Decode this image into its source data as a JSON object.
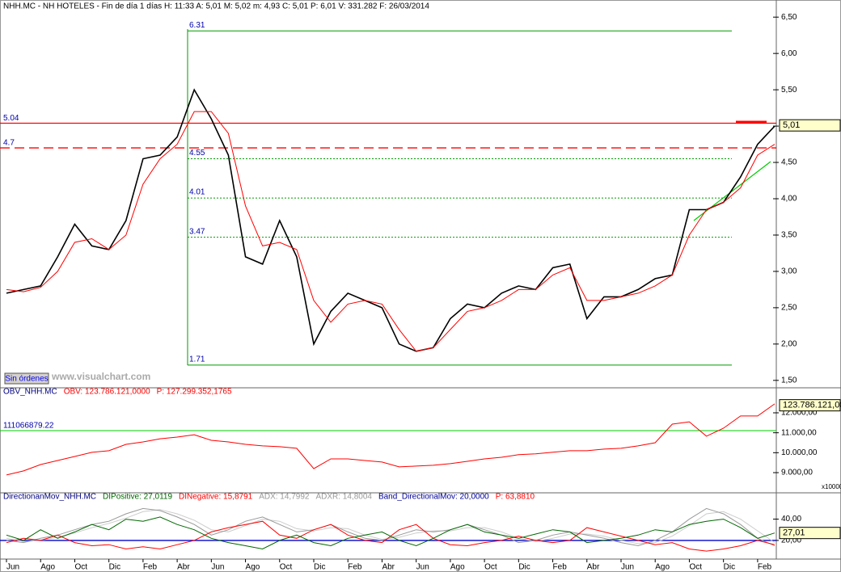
{
  "chart_data": [
    {
      "type": "line",
      "title": "NHH.MC - NH HOTELES - Fin de día 1 días H: 11:33 A: 5,01 M: 5,02 m: 4,93 C: 5,01 P: 6,01 V: 331.282 F: 26/03/2014",
      "ylim": [
        1.42,
        6.58
      ],
      "yticks": [
        {
          "value": 1.5,
          "label": "1,50"
        },
        {
          "value": 2,
          "label": "2,00"
        },
        {
          "value": 2.5,
          "label": "2,50"
        },
        {
          "value": 3,
          "label": "3,00"
        },
        {
          "value": 3.5,
          "label": "3,50"
        },
        {
          "value": 4,
          "label": "4,00"
        },
        {
          "value": 4.5,
          "label": "4,50"
        },
        {
          "value": 5,
          "label": "5,00"
        },
        {
          "value": 5.5,
          "label": "5,50"
        },
        {
          "value": 6,
          "label": "6,00"
        },
        {
          "value": 6.5,
          "label": "6,50"
        }
      ],
      "series": [
        {
          "color": "#000000",
          "values": [
            2.7,
            2.75,
            2.8,
            3.2,
            3.65,
            3.35,
            3.3,
            3.7,
            4.55,
            4.6,
            4.85,
            5.5,
            5.1,
            4.6,
            3.2,
            3.1,
            3.7,
            3.2,
            2.0,
            2.45,
            2.7,
            2.6,
            2.5,
            2.0,
            1.9,
            1.95,
            2.35,
            2.55,
            2.5,
            2.7,
            2.8,
            2.75,
            3.05,
            3.1,
            2.35,
            2.65,
            2.65,
            2.75,
            2.9,
            2.95,
            3.85,
            3.85,
            3.95,
            4.3,
            4.75,
            5.0
          ]
        },
        {
          "color": "#ff0000",
          "values": [
            2.75,
            2.72,
            2.78,
            3.0,
            3.4,
            3.45,
            3.3,
            3.5,
            4.2,
            4.55,
            4.75,
            5.2,
            5.2,
            4.9,
            3.9,
            3.35,
            3.4,
            3.3,
            2.6,
            2.3,
            2.55,
            2.6,
            2.55,
            2.2,
            1.9,
            1.95,
            2.2,
            2.45,
            2.5,
            2.6,
            2.75,
            2.75,
            2.95,
            3.05,
            2.6,
            2.6,
            2.65,
            2.7,
            2.8,
            2.95,
            3.5,
            3.85,
            3.95,
            4.15,
            4.6,
            4.75
          ]
        }
      ],
      "levels": [
        6.31,
        4.55,
        4.01,
        3.47,
        1.71
      ],
      "levels_color": "#009900",
      "resistance": [
        5.04,
        4.7
      ],
      "resistance_color": "#ff0000",
      "last_tag": {
        "value": 5.01,
        "label": "5,01"
      }
    },
    {
      "type": "line",
      "title": "OBV_NHH.MC",
      "readout": [
        {
          "text": "OBV: 123.786.121,0000",
          "color": "#ff0000"
        },
        {
          "text": "P: 127.299.352,1765",
          "color": "#ff0000"
        }
      ],
      "ylim": [
        8069,
        13174
      ],
      "yticks": [
        {
          "value": 9000,
          "label": "9.000,00"
        },
        {
          "value": 10000,
          "label": "10.000,00"
        },
        {
          "value": 11000,
          "label": "11.000,00"
        },
        {
          "value": 12000,
          "label": "12.000,00"
        }
      ],
      "scale_note": "x10000",
      "series": [
        {
          "color": "#ff0000",
          "values": [
            8882,
            9084,
            9408,
            9610,
            9813,
            10016,
            10097,
            10420,
            10540,
            10700,
            10785,
            10900,
            10620,
            10540,
            10420,
            10340,
            10300,
            10220,
            9200,
            9690,
            9690,
            9610,
            9530,
            9290,
            9330,
            9370,
            9450,
            9570,
            9690,
            9770,
            9900,
            9940,
            10020,
            10100,
            10100,
            10180,
            10220,
            10340,
            10500,
            11430,
            11550,
            10830,
            11230,
            11840,
            11840,
            12450
          ]
        }
      ],
      "level": {
        "value": 11106.687922,
        "label": "111066879.22"
      },
      "level_color": "#00cc00",
      "last_tag": {
        "value": 12378.6121,
        "label": "123.786.121,00"
      }
    },
    {
      "type": "line",
      "title": "DirectionanMov_NHH.MC",
      "readout": [
        {
          "text": "DIPositive: 27,0119",
          "color": "#006600"
        },
        {
          "text": "DINegative: 15,8791",
          "color": "#ff0000"
        },
        {
          "text": "ADX: 14,7992",
          "color": "#999999"
        },
        {
          "text": "ADXR: 14,8004",
          "color": "#999999"
        },
        {
          "text": "Band_DirectionalMov: 20,0000",
          "color": "#000099"
        },
        {
          "text": "P: 63,8810",
          "color": "#ff0000"
        }
      ],
      "ylim": [
        4,
        63.2
      ],
      "yticks": [
        {
          "value": 20,
          "label": "20,00"
        },
        {
          "value": 40,
          "label": "40,00"
        }
      ],
      "categories": [
        "Jun",
        null,
        "Ago",
        null,
        "Oct",
        null,
        "Dic",
        null,
        "Feb",
        null,
        "Abr",
        null,
        "Jun",
        null,
        "Ago",
        null,
        "Oct",
        null,
        "Dic",
        null,
        "Feb",
        null,
        "Abr",
        null,
        "Jun",
        null,
        "Ago",
        null,
        "Oct",
        null,
        "Dic",
        null,
        "Feb",
        null,
        "Abr",
        null,
        "Jun",
        null,
        "Ago",
        null,
        "Oct",
        null,
        "Dic",
        null,
        "Feb",
        null
      ],
      "series": [
        {
          "color": "#cccccc",
          "values": [
            22,
            19,
            20,
            23,
            27,
            32,
            36,
            41,
            47,
            49,
            45,
            39,
            30,
            28,
            34,
            40,
            38,
            31,
            29,
            32,
            31,
            25,
            21,
            23,
            27,
            29,
            29,
            32,
            32,
            28,
            22,
            19,
            22,
            26,
            26,
            24,
            20,
            17,
            18,
            24,
            34,
            45,
            47,
            40,
            29,
            18
          ]
        },
        {
          "color": "#999999",
          "values": [
            20,
            18,
            22,
            25,
            30,
            35,
            38,
            45,
            50,
            48,
            42,
            35,
            25,
            30,
            38,
            42,
            35,
            28,
            30,
            35,
            28,
            22,
            20,
            25,
            30,
            28,
            30,
            35,
            30,
            25,
            18,
            20,
            25,
            28,
            25,
            22,
            18,
            15,
            20,
            28,
            40,
            50,
            45,
            35,
            22,
            15
          ]
        },
        {
          "color": "#ff0000",
          "values": [
            18,
            22,
            20,
            25,
            18,
            15,
            16,
            12,
            14,
            12,
            16,
            20,
            28,
            32,
            35,
            38,
            25,
            22,
            30,
            35,
            25,
            20,
            18,
            30,
            35,
            22,
            16,
            15,
            18,
            20,
            24,
            20,
            18,
            20,
            32,
            28,
            24,
            20,
            16,
            18,
            12,
            10,
            12,
            15,
            20,
            16
          ]
        },
        {
          "color": "#006600",
          "values": [
            25,
            20,
            30,
            22,
            28,
            35,
            30,
            40,
            38,
            42,
            35,
            30,
            22,
            18,
            15,
            12,
            20,
            25,
            18,
            15,
            22,
            25,
            28,
            20,
            15,
            22,
            30,
            35,
            28,
            25,
            22,
            26,
            30,
            28,
            18,
            20,
            22,
            25,
            30,
            28,
            35,
            38,
            40,
            32,
            22,
            27
          ]
        }
      ],
      "band": 20,
      "band_color": "#0000cc",
      "last_tag": {
        "value": 27.01,
        "label": "27,01"
      }
    }
  ],
  "status_button": "Sin órdenes",
  "watermark": "www.visualchart.com"
}
